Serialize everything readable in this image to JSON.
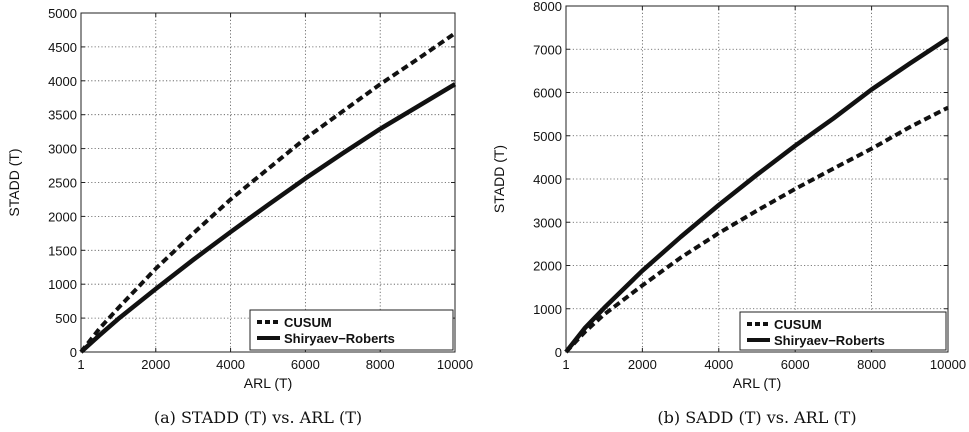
{
  "chart_data": [
    {
      "type": "line",
      "caption": "(a) STADD (T) vs. ARL (T)",
      "xlabel": "ARL (T)",
      "ylabel": "STADD (T)",
      "xlim": [
        1,
        10000
      ],
      "ylim": [
        0,
        5000
      ],
      "xticks": [
        "1",
        "2000",
        "4000",
        "6000",
        "8000",
        "10000"
      ],
      "yticks": [
        "0",
        "500",
        "1000",
        "1500",
        "2000",
        "2500",
        "3000",
        "3500",
        "4000",
        "4500",
        "5000"
      ],
      "grid": true,
      "legend_position": "bottom-right",
      "series": [
        {
          "name": "CUSUM",
          "style": "dashed",
          "x": [
            1,
            500,
            1000,
            2000,
            3000,
            4000,
            5000,
            6000,
            7000,
            8000,
            9000,
            10000
          ],
          "y": [
            0,
            350,
            650,
            1230,
            1750,
            2250,
            2700,
            3150,
            3550,
            3950,
            4320,
            4700
          ]
        },
        {
          "name": "Shiryaev−Roberts",
          "style": "solid",
          "x": [
            1,
            500,
            1000,
            2000,
            3000,
            4000,
            5000,
            6000,
            7000,
            8000,
            9000,
            10000
          ],
          "y": [
            0,
            250,
            490,
            930,
            1360,
            1770,
            2170,
            2560,
            2930,
            3290,
            3620,
            3950
          ]
        }
      ]
    },
    {
      "type": "line",
      "caption": "(b) SADD (T) vs. ARL (T)",
      "xlabel": "ARL (T)",
      "ylabel": "STADD (T)",
      "xlim": [
        1,
        10000
      ],
      "ylim": [
        0,
        8000
      ],
      "xticks": [
        "1",
        "2000",
        "4000",
        "6000",
        "8000",
        "10000"
      ],
      "yticks": [
        "0",
        "1000",
        "2000",
        "3000",
        "4000",
        "5000",
        "6000",
        "7000",
        "8000"
      ],
      "grid": true,
      "legend_position": "bottom-right",
      "series": [
        {
          "name": "CUSUM",
          "style": "dashed",
          "x": [
            1,
            500,
            1000,
            2000,
            3000,
            4000,
            5000,
            6000,
            7000,
            8000,
            9000,
            10000
          ],
          "y": [
            0,
            470,
            870,
            1540,
            2180,
            2750,
            3270,
            3770,
            4240,
            4700,
            5200,
            5650
          ]
        },
        {
          "name": "Shiryaev−Roberts",
          "style": "solid",
          "x": [
            1,
            500,
            1000,
            2000,
            3000,
            4000,
            5000,
            6000,
            7000,
            8000,
            9000,
            10000
          ],
          "y": [
            0,
            560,
            1020,
            1880,
            2660,
            3400,
            4100,
            4770,
            5400,
            6070,
            6670,
            7250
          ]
        }
      ]
    }
  ]
}
